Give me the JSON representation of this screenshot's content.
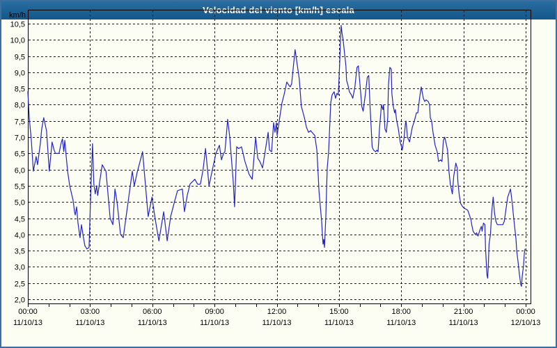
{
  "window": {
    "title": "Velocidad del viento [km/h] escala"
  },
  "colors": {
    "titlebar": "#1f6295",
    "titlebar_text": "#ffffff",
    "background": "#fcfdf3",
    "window_border": "#3d6f9e",
    "plot_frame": "#000000",
    "gridline": "#1c1c1c",
    "axis_text": "#000000",
    "series_line": "#2222cc"
  },
  "chart_data": {
    "type": "line",
    "title": "Velocidad del viento [km/h] escala",
    "ylabel": "km/h",
    "xlabel": "",
    "ylim": [
      2.0,
      10.5
    ],
    "y_tick_step": 0.5,
    "decimal_separator": ",",
    "grid": "dashed",
    "legend": "none",
    "y_tick_labels": [
      "10,5",
      "10,0",
      "9,5",
      "9,0",
      "8,5",
      "8,0",
      "7,5",
      "7,0",
      "6,5",
      "6,0",
      "5,5",
      "5,0",
      "4,5",
      "4,0",
      "3,5",
      "3,0",
      "2,5",
      "2,0"
    ],
    "x_ticks": [
      {
        "time": "00:00",
        "date": "11/10/13"
      },
      {
        "time": "03:00",
        "date": "11/10/13"
      },
      {
        "time": "06:00",
        "date": "11/10/13"
      },
      {
        "time": "09:00",
        "date": "11/10/13"
      },
      {
        "time": "12:00",
        "date": "11/10/13"
      },
      {
        "time": "15:00",
        "date": "11/10/13"
      },
      {
        "time": "18:00",
        "date": "11/10/13"
      },
      {
        "time": "21:00",
        "date": "11/10/13"
      },
      {
        "time": "00:00",
        "date": "12/10/13"
      }
    ],
    "x_major_tick_hours": 3,
    "x_minor_tick_hours": 1,
    "xlim_minutes": [
      0,
      1440
    ],
    "series": [
      {
        "name": "Velocidad del viento",
        "unit": "km/h",
        "color": "#2222cc",
        "points": [
          [
            0,
            8.4
          ],
          [
            4,
            7.6
          ],
          [
            10,
            6.9
          ],
          [
            16,
            5.95
          ],
          [
            24,
            6.4
          ],
          [
            28,
            6.15
          ],
          [
            36,
            6.8
          ],
          [
            40,
            7.25
          ],
          [
            46,
            7.6
          ],
          [
            54,
            7.2
          ],
          [
            62,
            5.95
          ],
          [
            70,
            6.85
          ],
          [
            76,
            6.6
          ],
          [
            80,
            6.5
          ],
          [
            90,
            6.5
          ],
          [
            97,
            6.85
          ],
          [
            100,
            6.95
          ],
          [
            104,
            6.55
          ],
          [
            107,
            6.9
          ],
          [
            111,
            6.4
          ],
          [
            115,
            5.95
          ],
          [
            121,
            5.5
          ],
          [
            131,
            5.05
          ],
          [
            135,
            4.7
          ],
          [
            137,
            4.6
          ],
          [
            141,
            4.85
          ],
          [
            145,
            4.35
          ],
          [
            151,
            3.9
          ],
          [
            155,
            4.3
          ],
          [
            161,
            3.9
          ],
          [
            165,
            3.65
          ],
          [
            171,
            3.55
          ],
          [
            177,
            3.6
          ],
          [
            181,
            5.0
          ],
          [
            187,
            6.8
          ],
          [
            191,
            5.55
          ],
          [
            195,
            5.25
          ],
          [
            199,
            5.5
          ],
          [
            202,
            5.2
          ],
          [
            215,
            6.15
          ],
          [
            226,
            5.95
          ],
          [
            238,
            4.5
          ],
          [
            246,
            4.3
          ],
          [
            252,
            5.4
          ],
          [
            258,
            5.0
          ],
          [
            268,
            4.0
          ],
          [
            276,
            3.9
          ],
          [
            290,
            5.0
          ],
          [
            302,
            5.95
          ],
          [
            308,
            5.5
          ],
          [
            316,
            5.9
          ],
          [
            332,
            6.55
          ],
          [
            348,
            4.55
          ],
          [
            359,
            5.15
          ],
          [
            368,
            4.5
          ],
          [
            379,
            3.8
          ],
          [
            393,
            4.7
          ],
          [
            403,
            3.8
          ],
          [
            413,
            4.55
          ],
          [
            424,
            5.0
          ],
          [
            433,
            5.35
          ],
          [
            447,
            5.4
          ],
          [
            453,
            4.7
          ],
          [
            461,
            5.2
          ],
          [
            469,
            5.55
          ],
          [
            483,
            5.7
          ],
          [
            491,
            5.55
          ],
          [
            499,
            5.55
          ],
          [
            507,
            6.0
          ],
          [
            514,
            6.65
          ],
          [
            524,
            5.5
          ],
          [
            534,
            6.0
          ],
          [
            544,
            6.5
          ],
          [
            554,
            6.75
          ],
          [
            560,
            6.3
          ],
          [
            566,
            6.5
          ],
          [
            570,
            6.55
          ],
          [
            578,
            7.55
          ],
          [
            584,
            7.0
          ],
          [
            594,
            5.65
          ],
          [
            598,
            4.85
          ],
          [
            604,
            6.7
          ],
          [
            610,
            6.65
          ],
          [
            618,
            6.7
          ],
          [
            628,
            6.25
          ],
          [
            640,
            5.85
          ],
          [
            649,
            5.7
          ],
          [
            659,
            7.0
          ],
          [
            665,
            6.35
          ],
          [
            671,
            6.25
          ],
          [
            679,
            6.05
          ],
          [
            687,
            6.6
          ],
          [
            695,
            7.15
          ],
          [
            699,
            6.6
          ],
          [
            705,
            6.55
          ],
          [
            711,
            7.45
          ],
          [
            715,
            7.15
          ],
          [
            719,
            7.45
          ],
          [
            721,
            7.05
          ],
          [
            727,
            7.5
          ],
          [
            735,
            8.05
          ],
          [
            741,
            8.3
          ],
          [
            749,
            8.7
          ],
          [
            755,
            8.6
          ],
          [
            759,
            8.55
          ],
          [
            763,
            8.65
          ],
          [
            773,
            9.7
          ],
          [
            781,
            9.1
          ],
          [
            785,
            8.8
          ],
          [
            791,
            7.95
          ],
          [
            800,
            7.6
          ],
          [
            806,
            7.3
          ],
          [
            812,
            7.15
          ],
          [
            818,
            7.2
          ],
          [
            822,
            7.15
          ],
          [
            830,
            7.05
          ],
          [
            836,
            6.6
          ],
          [
            840,
            5.8
          ],
          [
            842,
            5.35
          ],
          [
            846,
            4.85
          ],
          [
            850,
            4.4
          ],
          [
            852,
            4.0
          ],
          [
            854,
            3.7
          ],
          [
            856,
            3.85
          ],
          [
            858,
            3.6
          ],
          [
            862,
            4.55
          ],
          [
            864,
            5.35
          ],
          [
            866,
            6.05
          ],
          [
            870,
            6.55
          ],
          [
            874,
            7.55
          ],
          [
            876,
            8.05
          ],
          [
            880,
            8.3
          ],
          [
            886,
            8.4
          ],
          [
            890,
            8.2
          ],
          [
            894,
            8.35
          ],
          [
            898,
            8.3
          ],
          [
            902,
            9.3
          ],
          [
            906,
            10.45
          ],
          [
            909,
            10.2
          ],
          [
            912,
            10.0
          ],
          [
            916,
            9.6
          ],
          [
            920,
            9.2
          ],
          [
            922,
            8.75
          ],
          [
            926,
            8.6
          ],
          [
            930,
            8.4
          ],
          [
            936,
            8.3
          ],
          [
            940,
            8.2
          ],
          [
            946,
            8.55
          ],
          [
            952,
            9.15
          ],
          [
            956,
            9.2
          ],
          [
            962,
            8.45
          ],
          [
            966,
            7.95
          ],
          [
            970,
            7.8
          ],
          [
            976,
            8.3
          ],
          [
            982,
            8.85
          ],
          [
            986,
            8.9
          ],
          [
            990,
            7.9
          ],
          [
            993,
            7.3
          ],
          [
            996,
            6.7
          ],
          [
            1000,
            6.6
          ],
          [
            1006,
            6.55
          ],
          [
            1010,
            6.6
          ],
          [
            1013,
            6.55
          ],
          [
            1017,
            7.25
          ],
          [
            1023,
            8.0
          ],
          [
            1027,
            7.85
          ],
          [
            1029,
            8.0
          ],
          [
            1033,
            7.25
          ],
          [
            1037,
            7.15
          ],
          [
            1041,
            7.6
          ],
          [
            1043,
            8.6
          ],
          [
            1047,
            9.15
          ],
          [
            1051,
            9.1
          ],
          [
            1053,
            8.35
          ],
          [
            1057,
            7.95
          ],
          [
            1061,
            7.75
          ],
          [
            1063,
            7.85
          ],
          [
            1067,
            7.5
          ],
          [
            1071,
            7.3
          ],
          [
            1077,
            6.85
          ],
          [
            1081,
            6.7
          ],
          [
            1083,
            6.6
          ],
          [
            1088,
            6.95
          ],
          [
            1092,
            7.4
          ],
          [
            1094,
            7.5
          ],
          [
            1098,
            7.0
          ],
          [
            1104,
            6.85
          ],
          [
            1112,
            7.3
          ],
          [
            1118,
            7.5
          ],
          [
            1124,
            7.75
          ],
          [
            1128,
            7.75
          ],
          [
            1133,
            8.2
          ],
          [
            1138,
            8.55
          ],
          [
            1144,
            8.2
          ],
          [
            1148,
            8.1
          ],
          [
            1152,
            8.15
          ],
          [
            1158,
            8.1
          ],
          [
            1162,
            8.0
          ],
          [
            1164,
            7.6
          ],
          [
            1168,
            7.5
          ],
          [
            1172,
            7.15
          ],
          [
            1178,
            6.75
          ],
          [
            1184,
            6.55
          ],
          [
            1188,
            6.25
          ],
          [
            1194,
            6.3
          ],
          [
            1198,
            6.25
          ],
          [
            1202,
            6.9
          ],
          [
            1206,
            7.0
          ],
          [
            1212,
            6.7
          ],
          [
            1214,
            6.6
          ],
          [
            1218,
            5.95
          ],
          [
            1222,
            5.55
          ],
          [
            1228,
            5.25
          ],
          [
            1232,
            5.8
          ],
          [
            1238,
            6.2
          ],
          [
            1242,
            6.05
          ],
          [
            1244,
            5.6
          ],
          [
            1248,
            5.2
          ],
          [
            1252,
            4.95
          ],
          [
            1258,
            4.85
          ],
          [
            1264,
            4.8
          ],
          [
            1272,
            4.75
          ],
          [
            1274,
            4.7
          ],
          [
            1282,
            4.45
          ],
          [
            1284,
            4.3
          ],
          [
            1288,
            4.1
          ],
          [
            1294,
            4.0
          ],
          [
            1298,
            4.05
          ],
          [
            1302,
            3.95
          ],
          [
            1308,
            4.15
          ],
          [
            1312,
            4.25
          ],
          [
            1314,
            4.1
          ],
          [
            1318,
            4.35
          ],
          [
            1322,
            4.3
          ],
          [
            1324,
            3.55
          ],
          [
            1328,
            2.75
          ],
          [
            1330,
            2.65
          ],
          [
            1332,
            3.05
          ],
          [
            1334,
            3.7
          ],
          [
            1338,
            4.0
          ],
          [
            1342,
            4.7
          ],
          [
            1346,
            5.15
          ],
          [
            1350,
            4.65
          ],
          [
            1354,
            4.4
          ],
          [
            1358,
            4.3
          ],
          [
            1366,
            4.3
          ],
          [
            1374,
            4.3
          ],
          [
            1378,
            4.4
          ],
          [
            1382,
            4.7
          ],
          [
            1388,
            5.15
          ],
          [
            1396,
            5.4
          ],
          [
            1402,
            4.9
          ],
          [
            1404,
            4.65
          ],
          [
            1408,
            4.25
          ],
          [
            1412,
            3.85
          ],
          [
            1414,
            3.5
          ],
          [
            1418,
            3.15
          ],
          [
            1422,
            2.75
          ],
          [
            1426,
            2.45
          ],
          [
            1428,
            2.4
          ],
          [
            1430,
            2.7
          ],
          [
            1434,
            3.05
          ],
          [
            1436,
            3.4
          ],
          [
            1438,
            3.55
          ]
        ]
      }
    ]
  }
}
